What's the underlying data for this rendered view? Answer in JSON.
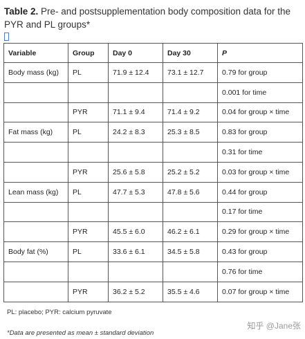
{
  "table_title": {
    "label": "Table 2.",
    "text": "Pre- and postsupplementation body composition data for the PYR and PL groups*"
  },
  "table": {
    "header": [
      "Variable",
      "Group",
      "Day 0",
      "Day 30",
      "P"
    ],
    "rows": [
      [
        "Body mass (kg)",
        "PL",
        "71.9 ± 12.4",
        "73.1 ± 12.7",
        "0.79 for group"
      ],
      [
        null,
        null,
        null,
        null,
        "0.001 for time"
      ],
      [
        null,
        "PYR",
        "71.1 ± 9.4",
        "71.4 ± 9.2",
        "0.04 for group × time"
      ],
      [
        "Fat mass (kg)",
        "PL",
        "24.2 ± 8.3",
        "25.3 ± 8.5",
        "0.83 for group"
      ],
      [
        null,
        null,
        null,
        null,
        "0.31 for time"
      ],
      [
        null,
        "PYR",
        "25.6 ± 5.8",
        "25.2 ± 5.2",
        "0.03 for group × time"
      ],
      [
        "Lean mass (kg)",
        "PL",
        "47.7 ± 5.3",
        "47.8 ± 5.6",
        "0.44 for group"
      ],
      [
        null,
        null,
        null,
        null,
        "0.17 for time"
      ],
      [
        null,
        "PYR",
        "45.5 ± 6.0",
        "46.2 ± 6.1",
        "0.29 for group × time"
      ],
      [
        "Body fat (%)",
        "PL",
        "33.6 ± 6.1",
        "34.5 ± 5.8",
        "0.43 for group"
      ],
      [
        null,
        null,
        null,
        null,
        "0.76 for time"
      ],
      [
        null,
        "PYR",
        "36.2 ± 5.2",
        "35.5 ± 4.6",
        "0.07 for group × time"
      ]
    ]
  },
  "footnotes": [
    "PL: placebo; PYR: calcium pyruvate",
    "*Data are presented as mean ± standard deviation"
  ],
  "watermark": "知乎 @Jane张"
}
